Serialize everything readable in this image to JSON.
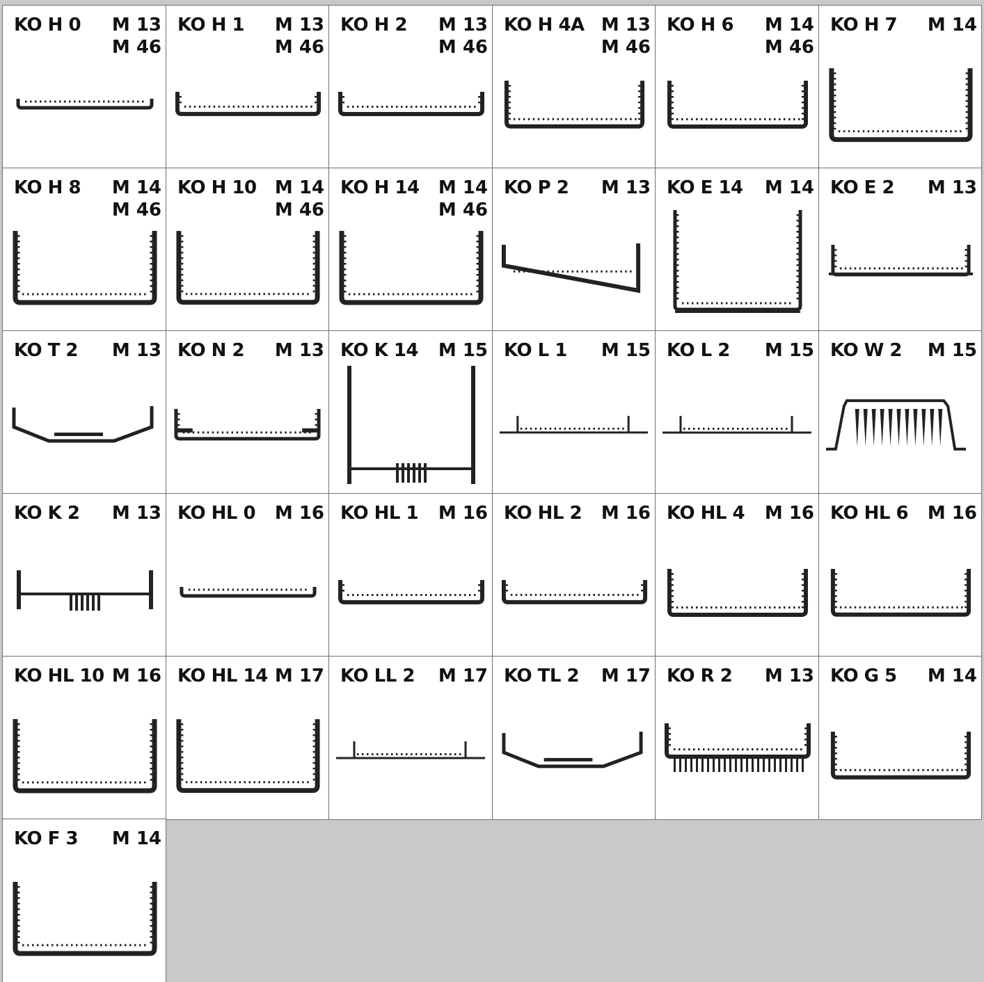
{
  "colors": {
    "background": "#c8c9cb",
    "cell": "#ffffff",
    "profile": "#222222",
    "border": "#6f6f6f"
  },
  "profiles": [
    {
      "name": "KO H 0",
      "codes": [
        "M 13",
        "M 46"
      ],
      "icon": "flat-channel-profile"
    },
    {
      "name": "KO H 1",
      "codes": [
        "M 13",
        "M 46"
      ],
      "icon": "shallow-u-profile"
    },
    {
      "name": "KO H 2",
      "codes": [
        "M 13",
        "M 46"
      ],
      "icon": "shallow-u-profile"
    },
    {
      "name": "KO H 4A",
      "codes": [
        "M 13",
        "M 46"
      ],
      "icon": "u-profile"
    },
    {
      "name": "KO H 6",
      "codes": [
        "M 14",
        "M 46"
      ],
      "icon": "u-profile"
    },
    {
      "name": "KO H 7",
      "codes": [
        "M 14"
      ],
      "icon": "deep-u-profile"
    },
    {
      "name": "KO H 8",
      "codes": [
        "M 14",
        "M 46"
      ],
      "icon": "deep-u-profile"
    },
    {
      "name": "KO H 10",
      "codes": [
        "M 14",
        "M 46"
      ],
      "icon": "deep-u-profile"
    },
    {
      "name": "KO H 14",
      "codes": [
        "M 14",
        "M 46"
      ],
      "icon": "deep-u-profile"
    },
    {
      "name": "KO P 2",
      "codes": [
        "M 13"
      ],
      "icon": "sloped-profile"
    },
    {
      "name": "KO E 14",
      "codes": [
        "M 14"
      ],
      "icon": "deep-u-feet-profile"
    },
    {
      "name": "KO E 2",
      "codes": [
        "M 13"
      ],
      "icon": "shallow-u-feet-profile"
    },
    {
      "name": "KO T 2",
      "codes": [
        "M 13"
      ],
      "icon": "trapezoid-profile"
    },
    {
      "name": "KO N 2",
      "codes": [
        "M 13"
      ],
      "icon": "notched-profile"
    },
    {
      "name": "KO K 14",
      "codes": [
        "M 15"
      ],
      "icon": "deep-heatsink-profile"
    },
    {
      "name": "KO L 1",
      "codes": [
        "M 15"
      ],
      "icon": "flange-profile"
    },
    {
      "name": "KO L 2",
      "codes": [
        "M 15"
      ],
      "icon": "flange-profile"
    },
    {
      "name": "KO W 2",
      "codes": [
        "M 15"
      ],
      "icon": "finned-bridge-profile"
    },
    {
      "name": "KO K 2",
      "codes": [
        "M 13"
      ],
      "icon": "heatsink-profile"
    },
    {
      "name": "KO HL 0",
      "codes": [
        "M 16"
      ],
      "icon": "flat-channel-profile"
    },
    {
      "name": "KO HL 1",
      "codes": [
        "M 16"
      ],
      "icon": "shallow-u-profile"
    },
    {
      "name": "KO HL 2",
      "codes": [
        "M 16"
      ],
      "icon": "shallow-u-profile"
    },
    {
      "name": "KO HL 4",
      "codes": [
        "M 16"
      ],
      "icon": "u-profile"
    },
    {
      "name": "KO HL 6",
      "codes": [
        "M 16"
      ],
      "icon": "u-profile"
    },
    {
      "name": "KO HL 10",
      "codes": [
        "M 16"
      ],
      "icon": "deep-u-profile"
    },
    {
      "name": "KO HL 14",
      "codes": [
        "M 17"
      ],
      "icon": "deep-u-profile"
    },
    {
      "name": "KO LL 2",
      "codes": [
        "M 17"
      ],
      "icon": "flange-profile"
    },
    {
      "name": "KO TL 2",
      "codes": [
        "M 17"
      ],
      "icon": "trapezoid-profile"
    },
    {
      "name": "KO R 2",
      "codes": [
        "M 13"
      ],
      "icon": "ribbed-u-profile"
    },
    {
      "name": "KO G 5",
      "codes": [
        "M 14"
      ],
      "icon": "u-profile"
    },
    {
      "name": "KO F 3",
      "codes": [
        "M 14"
      ],
      "icon": "deep-u-profile"
    }
  ]
}
